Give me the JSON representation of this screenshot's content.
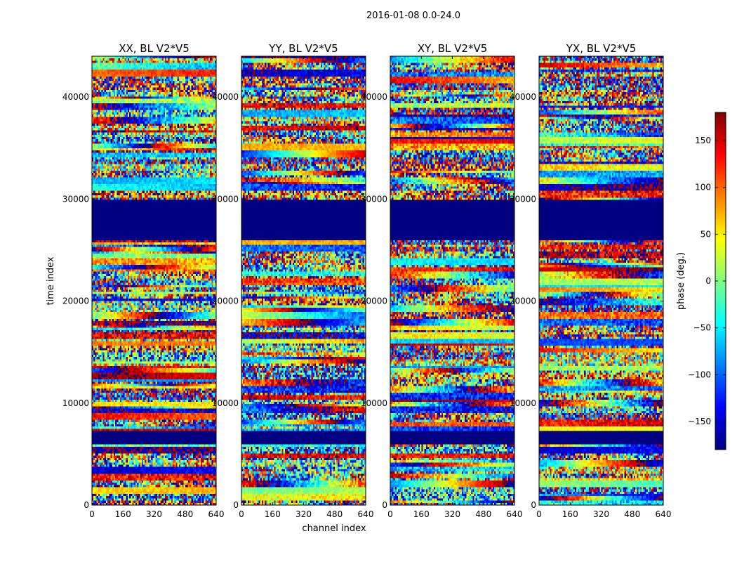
{
  "suptitle": "2016-01-08 0.0-24.0",
  "chart_data": {
    "type": "heatmap",
    "colormap": "jet",
    "panels": [
      {
        "title": "XX, BL V2*V5",
        "pol": "XX"
      },
      {
        "title": "YY, BL V2*V5",
        "pol": "YY"
      },
      {
        "title": "XY, BL V2*V5",
        "pol": "XY"
      },
      {
        "title": "YX, BL V2*V5",
        "pol": "YX"
      }
    ],
    "xlabel": "channel index",
    "ylabel": "time index",
    "xlim": [
      0,
      640
    ],
    "ylim": [
      0,
      44000
    ],
    "xticks": [
      0,
      160,
      320,
      480,
      640
    ],
    "xtick_labels": [
      "0",
      "160",
      "320",
      "480",
      "640"
    ],
    "yticks": [
      0,
      10000,
      20000,
      30000,
      40000
    ],
    "ytick_labels": [
      "0",
      "10000",
      "20000",
      "30000",
      "40000"
    ],
    "colorbar": {
      "label": "phase (deg.)",
      "range": [
        -180,
        180
      ],
      "ticks": [
        -150,
        -100,
        -50,
        0,
        50,
        100,
        150
      ],
      "tick_labels": [
        "−150",
        "−100",
        "−50",
        "0",
        "50",
        "100",
        "150"
      ]
    },
    "flagged_time_ranges": [
      [
        26000,
        30000
      ],
      [
        6000,
        7200
      ]
    ],
    "flagged_value": -180
  }
}
